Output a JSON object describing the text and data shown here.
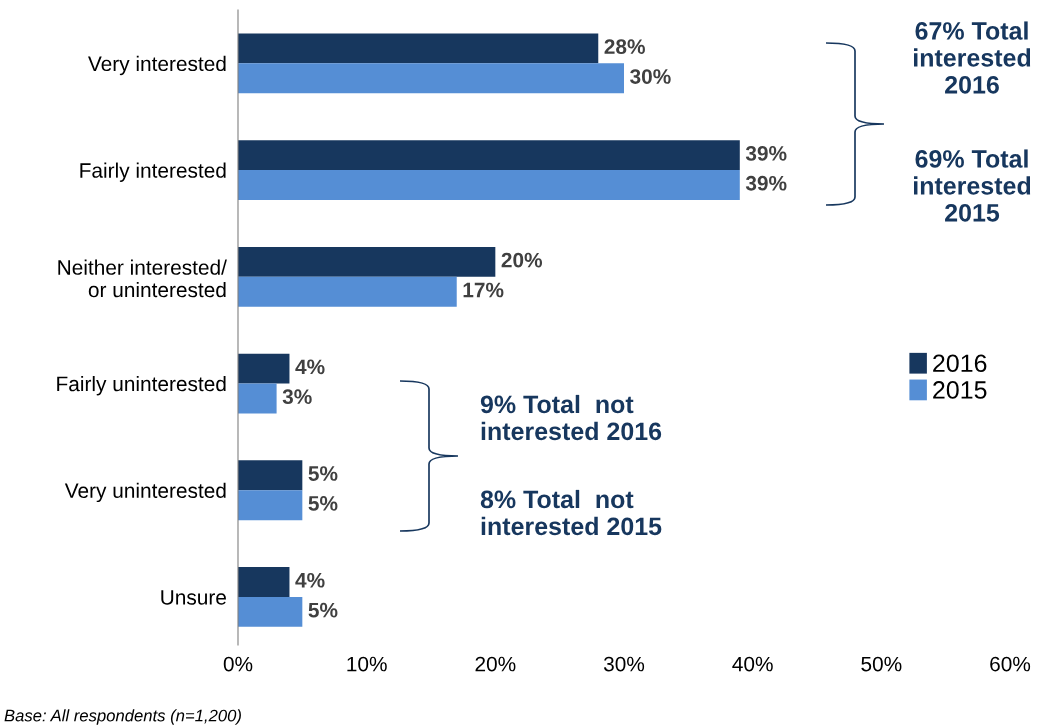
{
  "chart_data": {
    "type": "bar",
    "orientation": "horizontal",
    "categories": [
      "Very interested",
      "Fairly interested",
      "Neither interested/\nor uninterested",
      "Fairly uninterested",
      "Very uninterested",
      "Unsure"
    ],
    "series": [
      {
        "name": "2016",
        "color": "#17375e",
        "values": [
          28,
          39,
          20,
          4,
          5,
          4
        ],
        "value_labels": [
          "28%",
          "39%",
          "20%",
          "4%",
          "5%",
          "4%"
        ]
      },
      {
        "name": "2015",
        "color": "#558ed5",
        "values": [
          30,
          39,
          17,
          3,
          5,
          5
        ],
        "value_labels": [
          "30%",
          "39%",
          "17%",
          "3%",
          "5%",
          "5%"
        ]
      }
    ],
    "xlim": [
      0,
      60
    ],
    "xticks": [
      {
        "value": 0,
        "label": "0%"
      },
      {
        "value": 10,
        "label": "10%"
      },
      {
        "value": 20,
        "label": "20%"
      },
      {
        "value": 30,
        "label": "30%"
      },
      {
        "value": 40,
        "label": "40%"
      },
      {
        "value": 50,
        "label": "50%"
      },
      {
        "value": 60,
        "label": "60%"
      }
    ],
    "annotations": [
      "67% Total\ninterested\n2016",
      "69% Total\ninterested\n2015",
      "9% Total  not\ninterested 2016",
      "8% Total  not\ninterested 2015",
      "Base: All respondents (n=1,200)"
    ],
    "legend": "right",
    "grid": false
  }
}
